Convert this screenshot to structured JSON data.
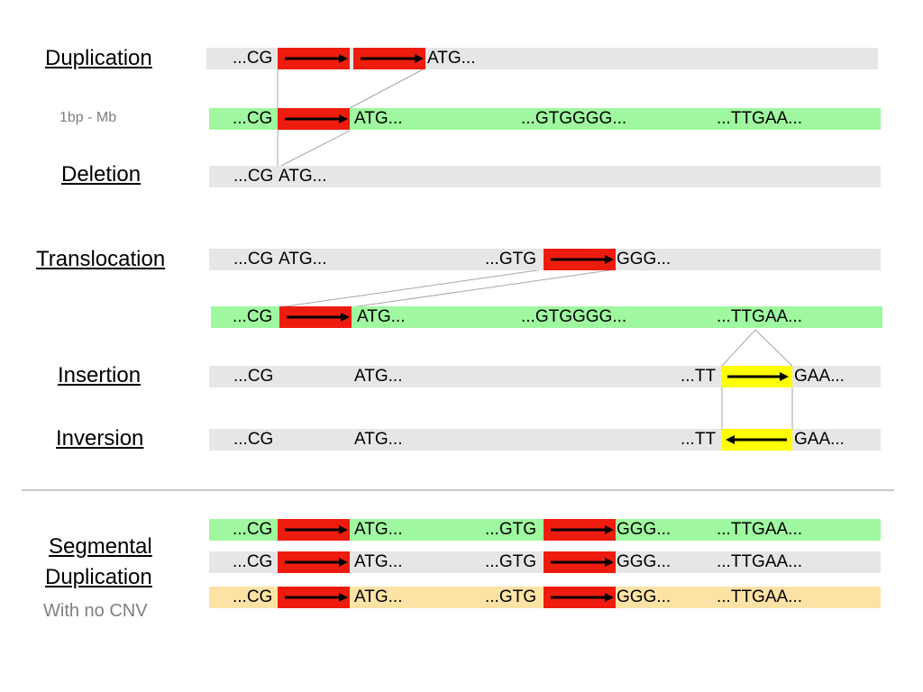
{
  "labels": {
    "duplication": "Duplication",
    "size_range": "1bp - Mb",
    "deletion": "Deletion",
    "translocation": "Translocation",
    "insertion": "Insertion",
    "inversion": "Inversion",
    "segmental_line1": "Segmental",
    "segmental_line2": "Duplication",
    "no_cnv": "With no CNV"
  },
  "sequences": {
    "cg": "...CG",
    "atg": "ATG...",
    "gtg": "...GTG",
    "ggg": "GGG...",
    "gtgggg": "...GTGGGG...",
    "ttgaa": "...TTGAA...",
    "tt": "...TT",
    "gaa": "GAA..."
  },
  "colors": {
    "reference_track": "#9ff79f",
    "variant_track": "#e6e6e6",
    "highlight_track": "#fce3a5",
    "segment": "#ee1c0f",
    "inserted_segment": "#ffff00"
  }
}
